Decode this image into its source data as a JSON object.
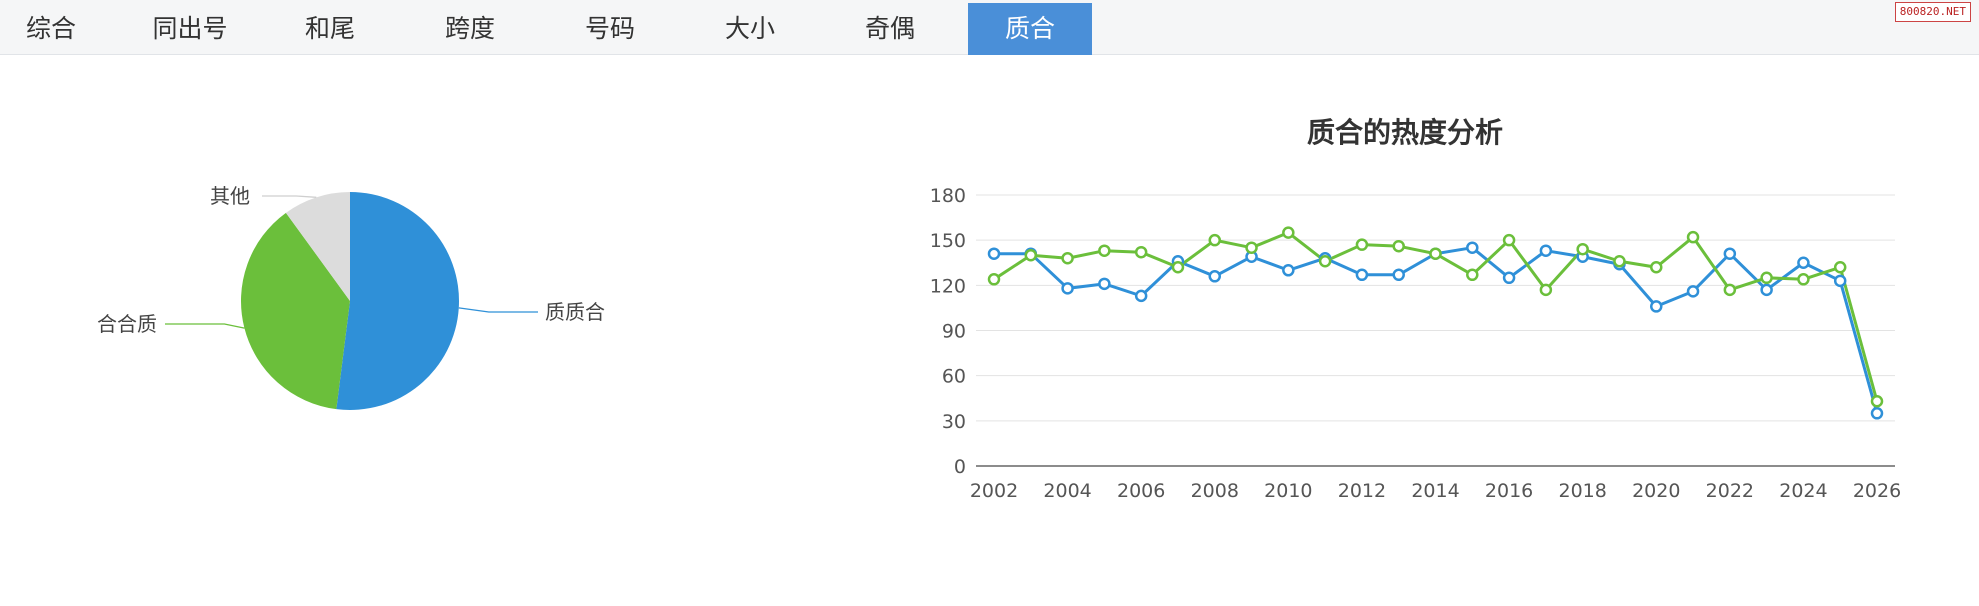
{
  "tabs": [
    {
      "label": "综合",
      "active": false
    },
    {
      "label": "同出号",
      "active": false
    },
    {
      "label": "和尾",
      "active": false
    },
    {
      "label": "跨度",
      "active": false
    },
    {
      "label": "号码",
      "active": false
    },
    {
      "label": "大小",
      "active": false
    },
    {
      "label": "奇偶",
      "active": false
    },
    {
      "label": "质合",
      "active": true
    }
  ],
  "watermark": "800820.NET",
  "colors": {
    "accent": "#4a8fd8",
    "blue": "#2f90d8",
    "green": "#6bbf3b",
    "gray": "#dcdcdc"
  },
  "chart_data": [
    {
      "type": "pie",
      "title": "",
      "slices": [
        {
          "label": "质质合",
          "value": 52,
          "color": "#2f90d8"
        },
        {
          "label": "合合质",
          "value": 38,
          "color": "#6bbf3b"
        },
        {
          "label": "其他",
          "value": 10,
          "color": "#dcdcdc"
        }
      ]
    },
    {
      "type": "line",
      "title": "质合的热度分析",
      "xlabel": "",
      "ylabel": "",
      "x": [
        2002,
        2003,
        2004,
        2005,
        2006,
        2007,
        2008,
        2009,
        2010,
        2011,
        2012,
        2013,
        2014,
        2015,
        2016,
        2017,
        2018,
        2019,
        2020,
        2021,
        2022,
        2023,
        2024,
        2025,
        2026
      ],
      "xticks": [
        2002,
        2004,
        2006,
        2008,
        2010,
        2012,
        2014,
        2016,
        2018,
        2020,
        2022,
        2024,
        2026
      ],
      "yticks": [
        0,
        30,
        60,
        90,
        120,
        150,
        180
      ],
      "ylim": [
        0,
        180
      ],
      "grid": true,
      "series": [
        {
          "color": "#2f90d8",
          "values": [
            141,
            141,
            118,
            121,
            113,
            136,
            126,
            139,
            130,
            138,
            127,
            127,
            141,
            145,
            125,
            143,
            139,
            134,
            106,
            116,
            141,
            117,
            135,
            123,
            35
          ]
        },
        {
          "color": "#6bbf3b",
          "values": [
            124,
            140,
            138,
            143,
            142,
            132,
            150,
            145,
            155,
            136,
            147,
            146,
            141,
            127,
            150,
            117,
            144,
            136,
            132,
            152,
            117,
            125,
            124,
            132,
            43
          ]
        }
      ]
    }
  ]
}
